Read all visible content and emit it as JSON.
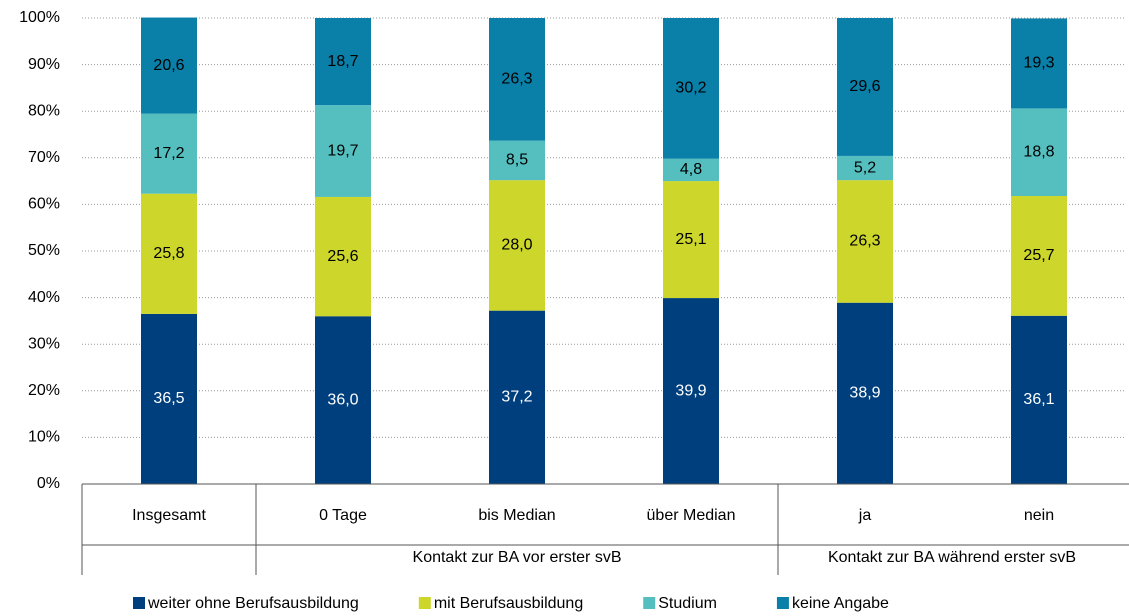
{
  "chart_data": {
    "type": "stacked_bar",
    "categories": [
      "Insgesamt",
      "0 Tage",
      "bis Median",
      "über Median",
      "ja",
      "nein"
    ],
    "groups": [
      {
        "label": "Kontakt zur BA vor erster svB",
        "members": [
          "0 Tage",
          "bis Median",
          "über Median"
        ]
      },
      {
        "label": "Kontakt zur BA während erster svB",
        "members": [
          "ja",
          "nein"
        ]
      }
    ],
    "series": [
      {
        "name": "weiter ohne Berufsausbildung",
        "color": "#003f7d",
        "values": [
          36.5,
          36.0,
          37.2,
          39.9,
          38.9,
          36.1
        ],
        "value_labels": [
          "36,5",
          "36,0",
          "37,2",
          "39,9",
          "38,9",
          "36,1"
        ]
      },
      {
        "name": "mit Berufsausbildung",
        "color": "#cdd62b",
        "values": [
          25.8,
          25.6,
          28.0,
          25.1,
          26.3,
          25.7
        ],
        "value_labels": [
          "25,8",
          "25,6",
          "28,0",
          "25,1",
          "26,3",
          "25,7"
        ]
      },
      {
        "name": "Studium",
        "color": "#55bfc0",
        "values": [
          17.2,
          19.7,
          8.5,
          4.8,
          5.2,
          18.8
        ],
        "value_labels": [
          "17,2",
          "19,7",
          "8,5",
          "4,8",
          "5,2",
          "18,8"
        ]
      },
      {
        "name": "keine Angabe",
        "color": "#0a7fa8",
        "values": [
          20.6,
          18.7,
          26.3,
          30.2,
          29.6,
          19.3
        ],
        "value_labels": [
          "20,6",
          "18,7",
          "26,3",
          "30,2",
          "29,6",
          "19,3"
        ]
      }
    ],
    "ylim": [
      0,
      100
    ],
    "yticks": [
      {
        "value": 0,
        "label": "0%"
      },
      {
        "value": 10,
        "label": "10%"
      },
      {
        "value": 20,
        "label": "20%"
      },
      {
        "value": 30,
        "label": "30%"
      },
      {
        "value": 40,
        "label": "40%"
      },
      {
        "value": 50,
        "label": "50%"
      },
      {
        "value": 60,
        "label": "60%"
      },
      {
        "value": 70,
        "label": "70%"
      },
      {
        "value": 80,
        "label": "80%"
      },
      {
        "value": 90,
        "label": "90%"
      },
      {
        "value": 100,
        "label": "100%"
      }
    ],
    "grid": true,
    "legend": "bottom"
  }
}
